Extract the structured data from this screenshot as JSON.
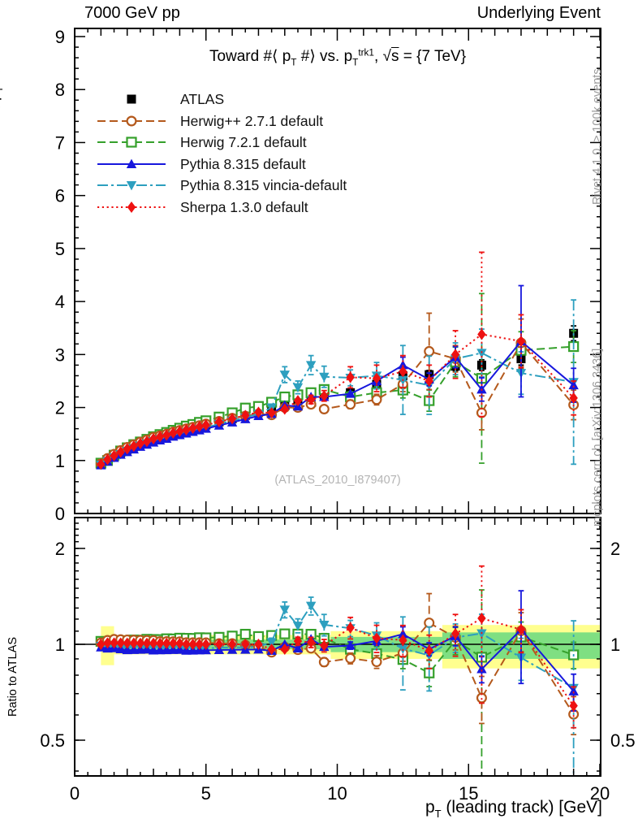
{
  "header": {
    "left": "7000 GeV pp",
    "right": "Underlying Event"
  },
  "side_notes": {
    "top": "Rivet 4.1.0, ≥ 100k events",
    "bottom": "mcplots.cern.ch [arXiv:1306.3436]"
  },
  "watermark": "(ATLAS_2010_I879407)",
  "labels": {
    "title_segments": [
      {
        "t": "Toward #⟨ p"
      },
      {
        "t": "T",
        "v": "sub"
      },
      {
        "t": " #⟩ vs. p"
      },
      {
        "t": "T",
        "v": "sub"
      },
      {
        "t": "trk1",
        "v": "sup"
      },
      {
        "t": ", √"
      },
      {
        "t": "s",
        "v": "ol"
      },
      {
        "t": " = {7 TeV}"
      }
    ],
    "xlabel_segments": [
      {
        "t": "p"
      },
      {
        "t": "T",
        "v": "sub"
      },
      {
        "t": " (leading track) [GeV]"
      }
    ],
    "ylabel_main_segments": [
      {
        "t": "#⟨ p"
      },
      {
        "t": "T",
        "v": "sub"
      },
      {
        "t": " #⟩"
      }
    ],
    "ylabel_ratio": "Ratio to ATLAS"
  },
  "axes": {
    "x_major_ticks": [
      0,
      5,
      10,
      15,
      20
    ],
    "y_major_ticks_main": [
      0,
      1,
      2,
      3,
      4,
      5,
      6,
      7,
      8,
      9
    ],
    "y_ticks_ratio": [
      0.5,
      1,
      2
    ],
    "x_range": [
      0,
      20.25
    ],
    "y_range_main": [
      0,
      9.15
    ],
    "y_range_ratio_log": [
      0.386,
      2.5
    ]
  },
  "chart_data": {
    "type": "line",
    "title": "Toward #⟨pT#⟩ vs. pT^trk1, √s = {7 TeV}",
    "xlabel": "pT (leading track) [GeV]",
    "ylabel": "#⟨ pT #⟩",
    "ylabel_ratio": "Ratio to ATLAS",
    "xlim": [
      0,
      20.25
    ],
    "ylim_main": [
      0,
      9.15
    ],
    "ylim_ratio": [
      0.386,
      2.5
    ],
    "ratio_scale": "log",
    "legend_position": "top-left",
    "grid": false,
    "x": [
      1.0,
      1.25,
      1.5,
      1.75,
      2.0,
      2.25,
      2.5,
      2.75,
      3.0,
      3.25,
      3.5,
      3.75,
      4.0,
      4.25,
      4.5,
      4.75,
      5.0,
      5.5,
      6.0,
      6.5,
      7.0,
      7.5,
      8.0,
      8.5,
      9.0,
      9.5,
      10.5,
      11.5,
      12.5,
      13.5,
      14.5,
      15.5,
      17.0,
      19.0
    ],
    "series": [
      {
        "name": "ATLAS",
        "color": "#000000",
        "marker": "square",
        "line": "none",
        "y": [
          0.93,
          1.01,
          1.08,
          1.15,
          1.21,
          1.26,
          1.31,
          1.35,
          1.4,
          1.44,
          1.47,
          1.51,
          1.54,
          1.58,
          1.61,
          1.64,
          1.67,
          1.73,
          1.79,
          1.85,
          1.91,
          1.97,
          2.04,
          2.08,
          2.12,
          2.24,
          2.28,
          2.44,
          2.6,
          2.62,
          2.78,
          2.8,
          2.92,
          3.4
        ],
        "yerr": [
          0.02,
          0.02,
          0.02,
          0.02,
          0.02,
          0.02,
          0.02,
          0.02,
          0.02,
          0.02,
          0.02,
          0.02,
          0.02,
          0.02,
          0.02,
          0.02,
          0.02,
          0.02,
          0.02,
          0.03,
          0.03,
          0.03,
          0.04,
          0.04,
          0.04,
          0.05,
          0.05,
          0.06,
          0.07,
          0.08,
          0.09,
          0.1,
          0.12,
          0.14
        ]
      },
      {
        "name": "Herwig++ 2.7.1 default",
        "color": "#b4591c",
        "marker": "circle-open",
        "line": "dash",
        "y": [
          0.94,
          1.04,
          1.12,
          1.19,
          1.25,
          1.3,
          1.35,
          1.39,
          1.44,
          1.47,
          1.5,
          1.54,
          1.57,
          1.6,
          1.63,
          1.66,
          1.69,
          1.74,
          1.8,
          1.84,
          1.88,
          1.86,
          2.0,
          2.0,
          2.06,
          1.97,
          2.06,
          2.15,
          2.44,
          3.06,
          2.92,
          1.9,
          3.22,
          2.05
        ],
        "yerr": [
          0.01,
          0.01,
          0.01,
          0.01,
          0.01,
          0.01,
          0.01,
          0.01,
          0.01,
          0.01,
          0.01,
          0.01,
          0.01,
          0.01,
          0.01,
          0.01,
          0.01,
          0.02,
          0.02,
          0.02,
          0.03,
          0.03,
          0.04,
          0.04,
          0.05,
          0.06,
          0.08,
          0.1,
          0.14,
          0.72,
          0.25,
          0.32,
          0.45,
          0.28
        ]
      },
      {
        "name": "Herwig 7.2.1 default",
        "color": "#35a02b",
        "marker": "square-open",
        "line": "dash",
        "y": [
          0.95,
          1.0,
          1.1,
          1.18,
          1.24,
          1.3,
          1.35,
          1.4,
          1.45,
          1.49,
          1.53,
          1.57,
          1.61,
          1.65,
          1.68,
          1.72,
          1.75,
          1.82,
          1.9,
          1.99,
          2.02,
          2.1,
          2.2,
          2.24,
          2.28,
          2.34,
          2.2,
          2.28,
          2.33,
          2.13,
          2.86,
          2.55,
          3.08,
          3.15
        ],
        "yerr": [
          0.01,
          0.01,
          0.01,
          0.01,
          0.01,
          0.01,
          0.01,
          0.01,
          0.01,
          0.01,
          0.01,
          0.01,
          0.01,
          0.01,
          0.01,
          0.01,
          0.01,
          0.02,
          0.02,
          0.03,
          0.03,
          0.04,
          0.05,
          0.06,
          0.07,
          0.08,
          0.1,
          0.12,
          0.15,
          0.2,
          0.28,
          1.6,
          0.35,
          0.3
        ]
      },
      {
        "name": "Pythia 8.315 default",
        "color": "#1717dd",
        "marker": "triangle-up",
        "line": "solid",
        "y": [
          0.91,
          0.98,
          1.05,
          1.11,
          1.16,
          1.21,
          1.26,
          1.3,
          1.34,
          1.38,
          1.41,
          1.45,
          1.48,
          1.51,
          1.54,
          1.57,
          1.6,
          1.66,
          1.72,
          1.78,
          1.84,
          1.88,
          2.04,
          2.02,
          2.2,
          2.2,
          2.26,
          2.5,
          2.8,
          2.53,
          2.95,
          2.34,
          3.25,
          2.42
        ],
        "yerr": [
          0.01,
          0.01,
          0.01,
          0.01,
          0.01,
          0.01,
          0.01,
          0.01,
          0.01,
          0.01,
          0.01,
          0.01,
          0.01,
          0.01,
          0.01,
          0.01,
          0.01,
          0.01,
          0.02,
          0.02,
          0.02,
          0.03,
          0.03,
          0.04,
          0.04,
          0.05,
          0.06,
          0.08,
          0.15,
          0.12,
          0.2,
          0.22,
          1.05,
          0.32
        ]
      },
      {
        "name": "Pythia 8.315 vincia-default",
        "color": "#2d9fbf",
        "marker": "triangle-down",
        "line": "dashdot",
        "y": [
          0.92,
          0.99,
          1.06,
          1.12,
          1.18,
          1.23,
          1.28,
          1.32,
          1.36,
          1.4,
          1.43,
          1.47,
          1.5,
          1.53,
          1.56,
          1.59,
          1.62,
          1.69,
          1.75,
          1.81,
          1.88,
          2.0,
          2.62,
          2.38,
          2.8,
          2.58,
          2.56,
          2.6,
          2.52,
          2.42,
          2.92,
          3.03,
          2.65,
          2.48
        ],
        "yerr": [
          0.01,
          0.01,
          0.01,
          0.01,
          0.01,
          0.01,
          0.01,
          0.01,
          0.01,
          0.01,
          0.01,
          0.01,
          0.01,
          0.01,
          0.01,
          0.01,
          0.01,
          0.02,
          0.02,
          0.03,
          0.04,
          0.06,
          0.15,
          0.12,
          0.18,
          0.2,
          0.15,
          0.25,
          0.65,
          0.55,
          0.3,
          0.45,
          0.4,
          1.55
        ]
      },
      {
        "name": "Sherpa 1.3.0 default",
        "color": "#ee1111",
        "marker": "diamond",
        "line": "dot",
        "y": [
          0.93,
          1.02,
          1.09,
          1.16,
          1.22,
          1.27,
          1.32,
          1.36,
          1.41,
          1.45,
          1.48,
          1.52,
          1.55,
          1.58,
          1.61,
          1.64,
          1.67,
          1.73,
          1.79,
          1.85,
          1.91,
          1.9,
          1.97,
          2.13,
          2.15,
          2.22,
          2.57,
          2.55,
          2.68,
          2.5,
          3.0,
          3.38,
          3.25,
          2.18
        ],
        "yerr": [
          0.01,
          0.01,
          0.01,
          0.01,
          0.01,
          0.01,
          0.01,
          0.01,
          0.01,
          0.01,
          0.01,
          0.01,
          0.01,
          0.01,
          0.01,
          0.01,
          0.01,
          0.02,
          0.02,
          0.03,
          0.03,
          0.04,
          0.05,
          0.06,
          0.08,
          0.1,
          0.2,
          0.25,
          0.3,
          0.3,
          0.45,
          1.55,
          0.5,
          0.32
        ]
      }
    ],
    "ratio_reference": "ATLAS",
    "bands": {
      "yellow": {
        "color": "#ffff8f",
        "segments": [
          {
            "x0": 1.0,
            "x1": 1.5,
            "lo": 0.86,
            "hi": 1.14
          },
          {
            "x0": 1.5,
            "x1": 9.75,
            "lo": 0.93,
            "hi": 1.07
          },
          {
            "x0": 9.75,
            "x1": 14.0,
            "lo": 0.9,
            "hi": 1.1
          },
          {
            "x0": 14.0,
            "x1": 20.0,
            "lo": 0.84,
            "hi": 1.15
          }
        ]
      },
      "green": {
        "color": "#7fdf82",
        "segments": [
          {
            "x0": 1.0,
            "x1": 9.75,
            "lo": 0.965,
            "hi": 1.035
          },
          {
            "x0": 9.75,
            "x1": 14.0,
            "lo": 0.945,
            "hi": 1.055
          },
          {
            "x0": 14.0,
            "x1": 20.0,
            "lo": 0.9,
            "hi": 1.09
          }
        ]
      }
    }
  }
}
